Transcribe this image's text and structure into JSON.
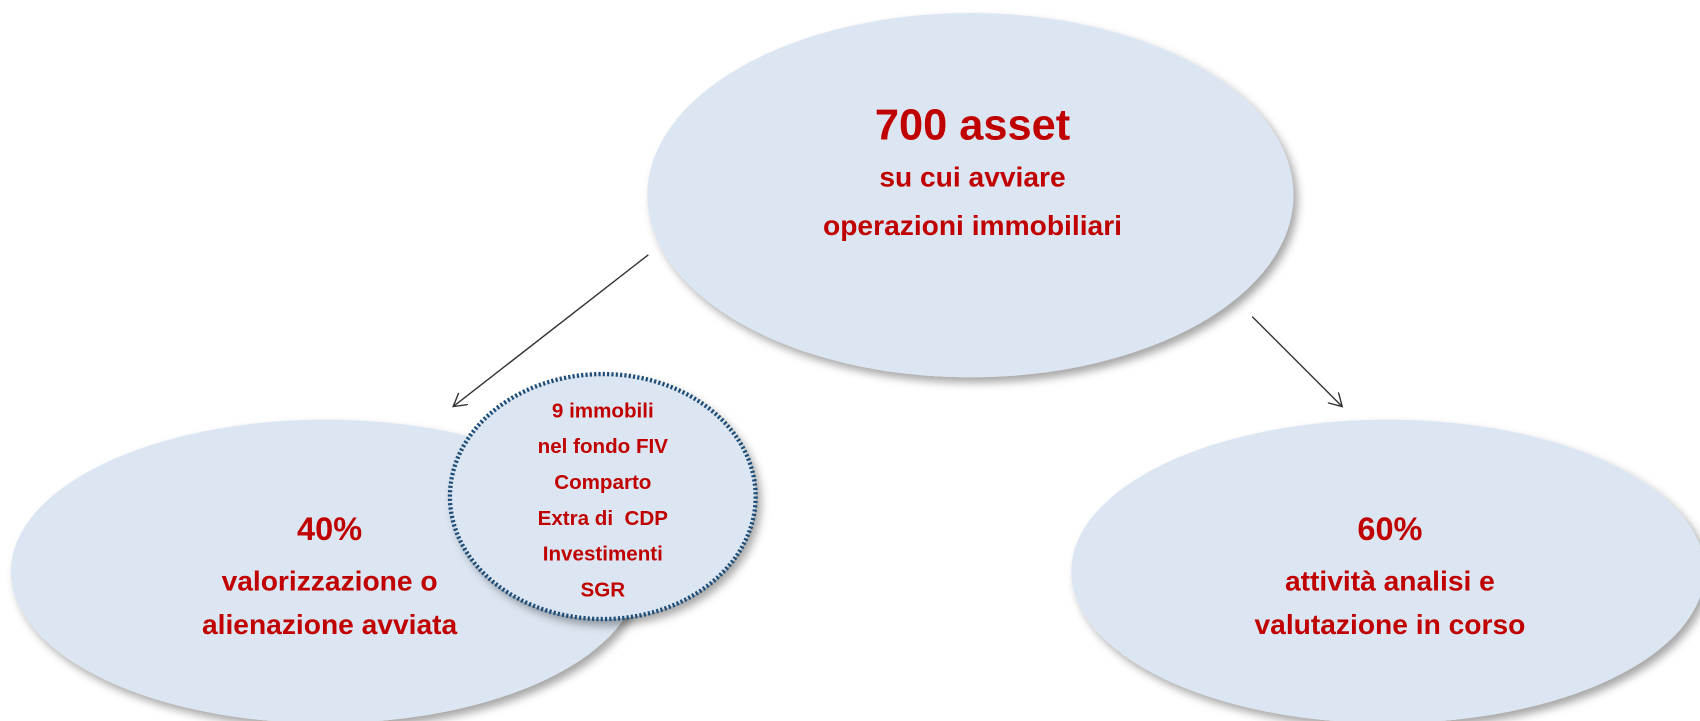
{
  "nodes": [
    {
      "lines": [
        "700 asset",
        "su cui avviare",
        "operazioni immobiliari"
      ]
    },
    {
      "lines": [
        "40%",
        "valorizzazione o",
        "alienazione avviata"
      ]
    },
    {
      "lines": [
        "60%",
        "attività analisi e",
        "valutazione in corso"
      ]
    },
    {
      "lines": [
        "9 immobili",
        "nel fondo FIV",
        "Comparto",
        "Extra di  CDP",
        "Investimenti",
        "SGR"
      ]
    }
  ]
}
